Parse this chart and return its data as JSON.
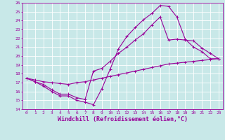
{
  "xlabel": "Windchill (Refroidissement éolien,°C)",
  "xlim": [
    -0.5,
    23.5
  ],
  "ylim": [
    14,
    26
  ],
  "yticks": [
    14,
    15,
    16,
    17,
    18,
    19,
    20,
    21,
    22,
    23,
    24,
    25,
    26
  ],
  "xticks": [
    0,
    1,
    2,
    3,
    4,
    5,
    6,
    7,
    8,
    9,
    10,
    11,
    12,
    13,
    14,
    15,
    16,
    17,
    18,
    19,
    20,
    21,
    22,
    23
  ],
  "bg_color": "#c8e8e8",
  "line_color": "#990099",
  "grid_color": "#ffffff",
  "lines": [
    {
      "x": [
        0,
        1,
        2,
        3,
        4,
        5,
        6,
        7,
        8,
        9,
        10,
        11,
        12,
        13,
        14,
        15,
        16,
        17,
        18,
        19,
        20,
        21,
        22,
        23
      ],
      "y": [
        17.5,
        17.1,
        16.6,
        16.0,
        15.5,
        15.5,
        15.0,
        14.8,
        14.5,
        16.3,
        18.5,
        20.8,
        22.2,
        23.2,
        24.1,
        24.8,
        25.7,
        25.6,
        24.4,
        21.9,
        21.0,
        20.5,
        19.7,
        19.7
      ]
    },
    {
      "x": [
        0,
        1,
        2,
        3,
        4,
        5,
        6,
        7,
        8,
        9,
        10,
        11,
        12,
        13,
        14,
        15,
        16,
        17,
        18,
        19,
        20,
        21,
        22,
        23
      ],
      "y": [
        17.5,
        17.1,
        16.8,
        16.2,
        15.7,
        15.7,
        15.3,
        15.1,
        18.3,
        18.6,
        19.4,
        20.3,
        21.0,
        21.8,
        22.5,
        23.5,
        24.4,
        21.8,
        21.9,
        21.8,
        21.7,
        20.9,
        20.3,
        19.7
      ]
    },
    {
      "x": [
        0,
        1,
        2,
        3,
        4,
        5,
        6,
        7,
        8,
        9,
        10,
        11,
        12,
        13,
        14,
        15,
        16,
        17,
        18,
        19,
        20,
        21,
        22,
        23
      ],
      "y": [
        17.5,
        17.3,
        17.1,
        17.0,
        16.9,
        16.8,
        17.0,
        17.1,
        17.3,
        17.5,
        17.7,
        17.9,
        18.1,
        18.3,
        18.5,
        18.7,
        18.9,
        19.1,
        19.2,
        19.3,
        19.4,
        19.5,
        19.6,
        19.7
      ]
    }
  ],
  "font_color": "#990099",
  "tick_fontsize": 4.5,
  "label_fontsize": 6.0
}
